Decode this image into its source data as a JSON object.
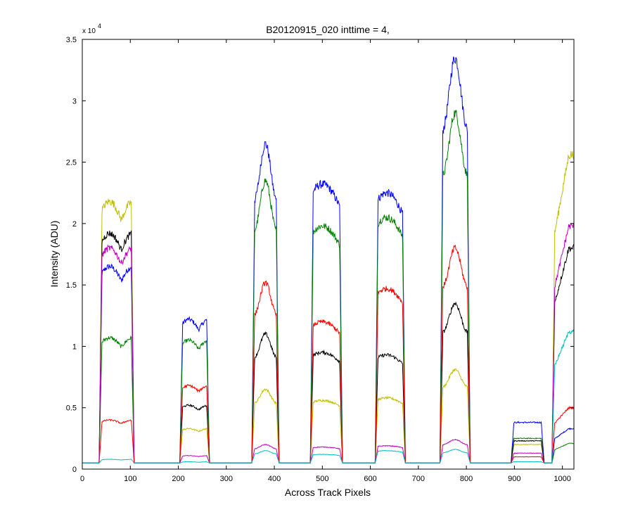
{
  "chart_data": {
    "type": "line",
    "title": "B20120915_020 inttime = 4,",
    "xlabel": "Across Track Pixels",
    "ylabel": "Intensity (ADU)",
    "y_exponent_label": "x 10",
    "y_exponent": "4",
    "xlim": [
      0,
      1024
    ],
    "ylim": [
      0,
      35000
    ],
    "xticks": [
      0,
      100,
      200,
      300,
      400,
      500,
      600,
      700,
      800,
      900,
      1000
    ],
    "yticks": [
      0,
      5000,
      10000,
      15000,
      20000,
      25000,
      30000,
      35000
    ],
    "ytick_labels": [
      "0",
      "0.5",
      "1",
      "1.5",
      "2",
      "2.5",
      "3",
      "3.5"
    ],
    "grid": false,
    "legend": "none",
    "baseline": 500,
    "segments": [
      {
        "x_start": 35,
        "x_end": 108,
        "curve": "double-hump"
      },
      {
        "x_start": 203,
        "x_end": 265,
        "curve": "double-hump"
      },
      {
        "x_start": 353,
        "x_end": 410,
        "curve": "peak-center"
      },
      {
        "x_start": 475,
        "x_end": 542,
        "curve": "flat-rounded"
      },
      {
        "x_start": 610,
        "x_end": 673,
        "curve": "flat-rounded"
      },
      {
        "x_start": 745,
        "x_end": 808,
        "curve": "peak-center"
      },
      {
        "x_start": 893,
        "x_end": 962,
        "curve": "flat"
      },
      {
        "x_start": 978,
        "x_end": 1024,
        "curve": "rising"
      }
    ],
    "series": [
      {
        "color": "#0000ff",
        "plateaus": [
          16500,
          12200,
          26500,
          23200,
          22500,
          33500,
          3800,
          3300
        ]
      },
      {
        "color": "#008000",
        "plateaus": [
          10700,
          10500,
          23500,
          19800,
          20500,
          29000,
          2500,
          2100
        ]
      },
      {
        "color": "#bfbf00",
        "plateaus": [
          21800,
          3300,
          6500,
          5600,
          5800,
          8100,
          2000,
          25600
        ]
      },
      {
        "color": "#000000",
        "plateaus": [
          19200,
          5200,
          11000,
          9500,
          9300,
          13500,
          2300,
          18000
        ]
      },
      {
        "color": "#bf00bf",
        "plateaus": [
          18000,
          1100,
          2000,
          1800,
          1900,
          2400,
          1300,
          19800
        ]
      },
      {
        "color": "#ff0000",
        "plateaus": [
          4000,
          6800,
          15200,
          12000,
          14700,
          18000,
          1000,
          5000
        ]
      },
      {
        "color": "#00bfbf",
        "plateaus": [
          800,
          600,
          1500,
          1200,
          1500,
          1600,
          600,
          11200
        ]
      }
    ]
  }
}
